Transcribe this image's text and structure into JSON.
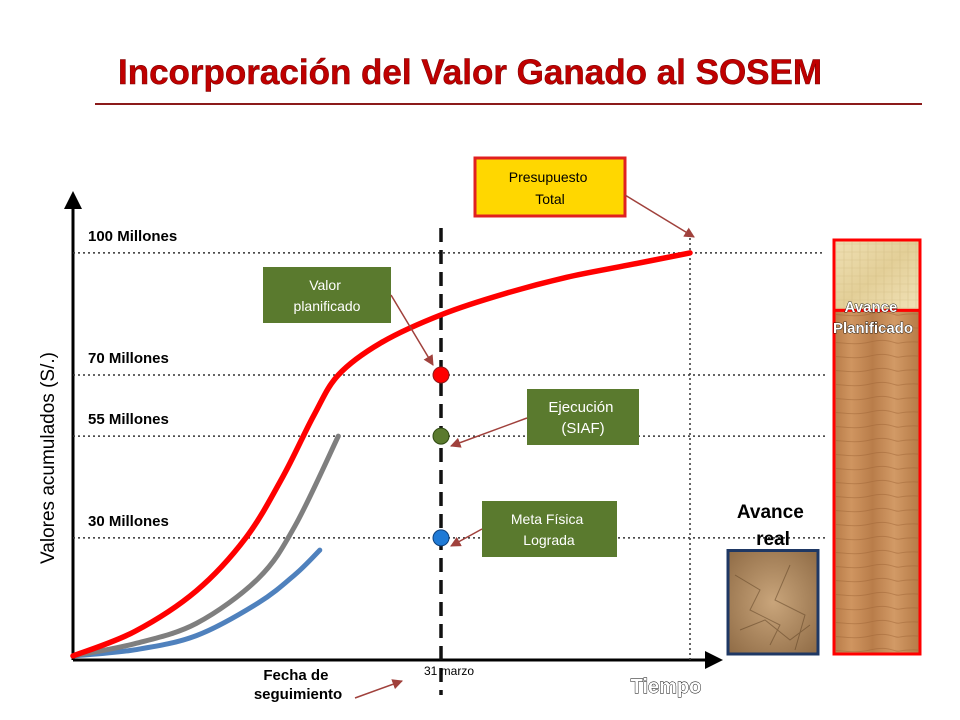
{
  "title": "Incorporación del Valor Ganado al SOSEM",
  "colors": {
    "title": "#c00000",
    "rule": "#8b1a1a",
    "planned": "#ff0000",
    "executed": "#7f7f7f",
    "physical": "#4f81bd",
    "green_box": "#5a7a2e",
    "yellow_box": "#ffd700",
    "arrow": "#a0413c"
  },
  "chart_data": {
    "type": "line",
    "title": "",
    "xlabel": "Tiempo",
    "ylabel": "Valores acumulados (S/.)",
    "ylim": [
      0,
      113
    ],
    "grid": false,
    "y_ticks": [
      {
        "value": 100,
        "label": "100 Millones"
      },
      {
        "value": 70,
        "label": "70 Millones"
      },
      {
        "value": 55,
        "label": "55 Millones"
      },
      {
        "value": 30,
        "label": "30 Millones"
      }
    ],
    "cutoff_label": "31 marzo",
    "cutoff_caption": "Fecha de seguimiento",
    "series": [
      {
        "key": "planned",
        "x": [
          0.0,
          0.1,
          0.2,
          0.28,
          0.34,
          0.39,
          0.43,
          0.5,
          0.6,
          0.7,
          0.8,
          0.9,
          1.0
        ],
        "y": [
          1,
          7,
          17,
          30,
          45,
          60,
          70,
          78,
          85,
          90,
          94,
          97,
          100
        ]
      },
      {
        "key": "executed",
        "x": [
          0.0,
          0.1,
          0.2,
          0.3,
          0.36,
          0.43
        ],
        "y": [
          1,
          4,
          9,
          20,
          33,
          55
        ]
      },
      {
        "key": "physical",
        "x": [
          0.0,
          0.1,
          0.2,
          0.3,
          0.36,
          0.4
        ],
        "y": [
          1,
          2.5,
          6,
          14,
          21,
          27
        ]
      }
    ],
    "points": [
      {
        "key": "planned",
        "x": 0.43,
        "y": 70
      },
      {
        "key": "executed",
        "x": 0.43,
        "y": 55
      },
      {
        "key": "physical",
        "x": 0.43,
        "y": 30
      }
    ],
    "annotations": {
      "presupuesto": "Presupuesto Total",
      "valor_planificado": "Valor planificado",
      "ejecucion": "Ejecución (SIAF)",
      "meta_fisica": "Meta Física Lograda"
    }
  },
  "side": {
    "avance_planificado": "Avance Planificado",
    "avance_real": "Avance real",
    "planned_fill": 0.83,
    "real_fill": 0.25
  }
}
